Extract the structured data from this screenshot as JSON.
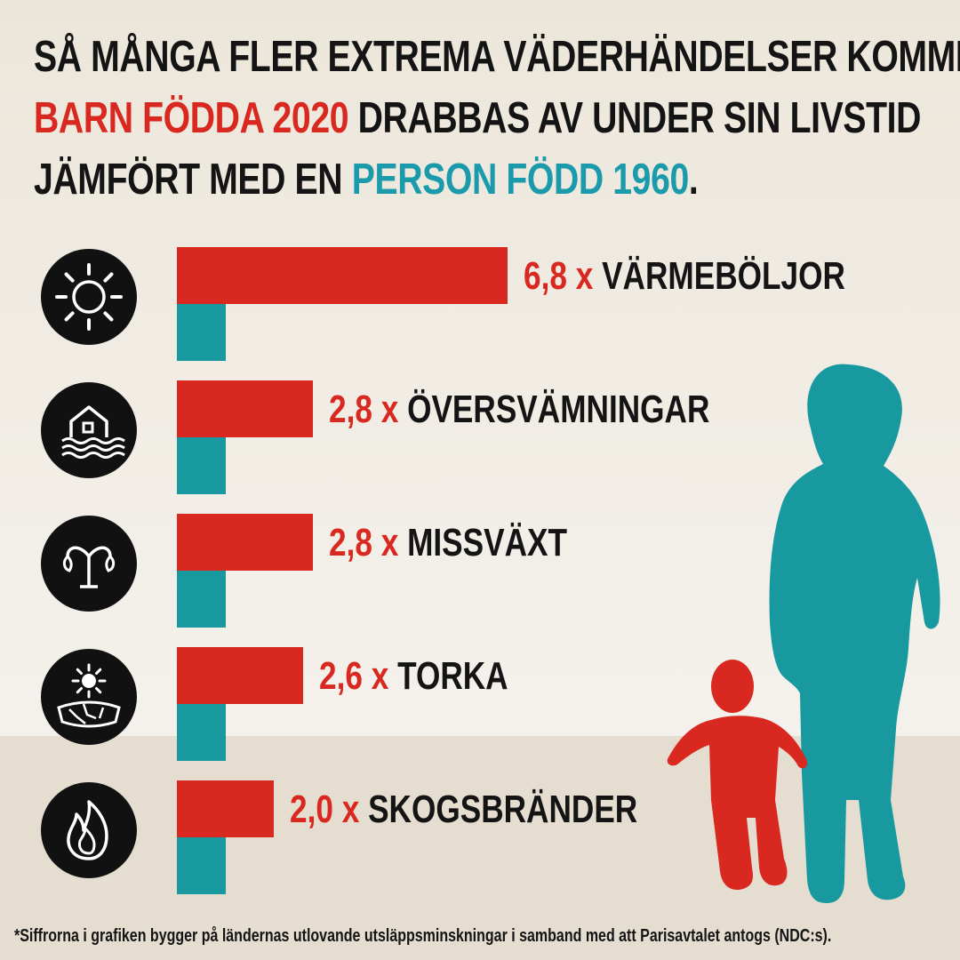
{
  "title": {
    "line1": "SÅ MÅNGA FLER EXTREMA VÄDERHÄNDELSER KOMMER",
    "line2_red": "BARN FÖDDA 2020",
    "line2_rest": " DRABBAS AV UNDER SIN LIVSTID",
    "line3_start": "JÄMFÖRT MED EN ",
    "line3_teal": "PERSON FÖDD 1960",
    "line3_end": "."
  },
  "colors": {
    "born_2020": "#d9281f",
    "born_1960": "#18989f",
    "text": "#141414",
    "icon_bg": "#111111"
  },
  "chart_data": {
    "type": "bar",
    "orientation": "horizontal",
    "categories": [
      "VÄRMEBÖLJOR",
      "ÖVERSVÄMNINGAR",
      "MISSVÄXT",
      "TORKA",
      "SKOGSBRÄNDER"
    ],
    "icons": [
      "sun-icon",
      "flooded-house-icon",
      "wilted-plant-icon",
      "drought-icon",
      "fire-icon"
    ],
    "series": [
      {
        "values": [
          6.8,
          2.8,
          2.8,
          2.6,
          2.0
        ],
        "color": "#d9281f"
      },
      {
        "values": [
          1.0,
          1.0,
          1.0,
          1.0,
          1.0
        ],
        "color": "#18989f"
      }
    ],
    "data_labels": [
      "6,8 x",
      "2,8 x",
      "2,8 x",
      "2,6 x",
      "2,0 x"
    ],
    "title": "",
    "xlabel": "",
    "ylabel": "",
    "xlim": [
      0,
      7.2
    ],
    "grid": false,
    "legend": "none"
  },
  "footnote": "*Siffrorna i grafiken bygger på ländernas utlovande utsläppsminskningar i samband med att Parisavtalet antogs (NDC:s)."
}
